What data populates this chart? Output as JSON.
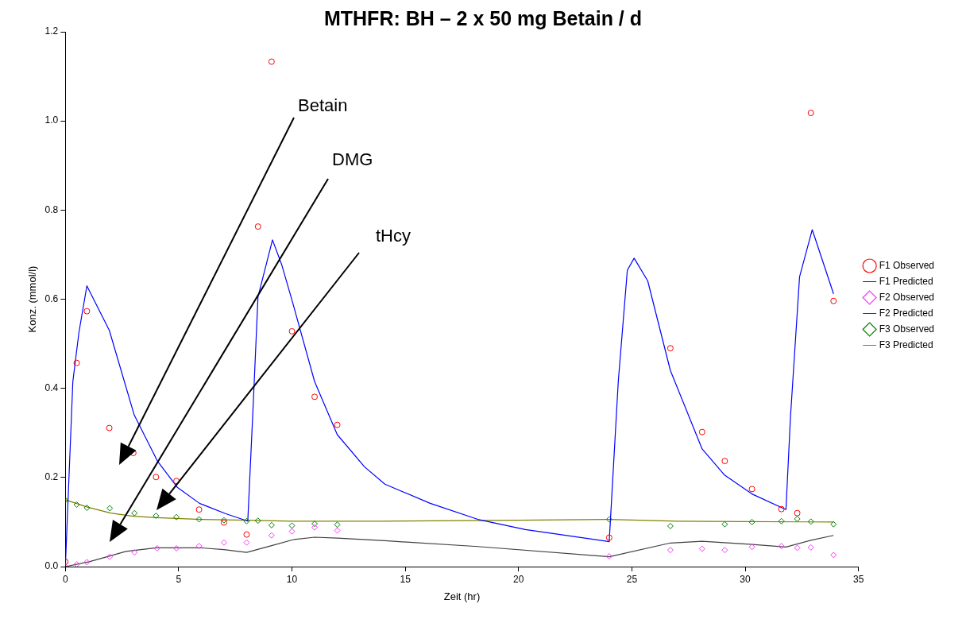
{
  "chart_data": {
    "type": "scatter",
    "title": "MTHFR: BH – 2 x 50 mg Betain / d",
    "xlabel": "Zeit (hr)",
    "ylabel": "Konz. (mmol/l)",
    "xlim": [
      0,
      35
    ],
    "xticks": [
      0,
      5,
      10,
      15,
      20,
      25,
      30,
      35
    ],
    "ylim": [
      0,
      1.2
    ],
    "yticks": [
      {
        "value": 0,
        "label": "0.0"
      },
      {
        "value": 0.2,
        "label": "0.2"
      },
      {
        "value": 0.4,
        "label": "0.4"
      },
      {
        "value": 0.6,
        "label": "0.6"
      },
      {
        "value": 0.8,
        "label": "0.8"
      },
      {
        "value": 1,
        "label": "1.0"
      },
      {
        "value": 1.2,
        "label": "1.2"
      }
    ],
    "grid": false,
    "legend": "right",
    "annotations": [
      "Betain",
      "DMG",
      "tHcy"
    ],
    "series": [
      {
        "name": "F1 Observed",
        "marker": "circle",
        "color": "#ff0000",
        "x": [
          0,
          0.5,
          0.95,
          1.94,
          3.0,
          4.0,
          4.9,
          5.9,
          7.0,
          8.0,
          8.5,
          9.1,
          10.0,
          11.0,
          12.0,
          24.0,
          26.7,
          28.1,
          29.1,
          30.3,
          31.6,
          32.3,
          32.9,
          33.9
        ],
        "values": [
          0.011,
          0.457,
          0.573,
          0.311,
          0.255,
          0.201,
          0.192,
          0.128,
          0.099,
          0.072,
          0.763,
          1.133,
          0.528,
          0.381,
          0.318,
          0.065,
          0.49,
          0.302,
          0.237,
          0.174,
          0.129,
          0.12,
          1.018,
          0.596
        ]
      },
      {
        "name": "F1 Predicted",
        "type": "line",
        "marker": "none",
        "color": "#0000ff",
        "x": [
          0,
          0.33,
          0.6,
          0.95,
          1.94,
          3.04,
          4.06,
          4.94,
          5.92,
          7.06,
          8.05,
          8.3,
          8.5,
          9.14,
          9.55,
          10.0,
          11.0,
          12.0,
          13.2,
          14.1,
          16.1,
          18.2,
          20.3,
          24.0,
          24.4,
          24.8,
          25.1,
          25.7,
          26.7,
          28.1,
          29.1,
          30.3,
          31.8,
          32.0,
          32.4,
          32.96,
          33.9
        ],
        "values": [
          0,
          0.415,
          0.526,
          0.63,
          0.53,
          0.34,
          0.237,
          0.178,
          0.142,
          0.119,
          0.102,
          0.375,
          0.605,
          0.733,
          0.677,
          0.598,
          0.415,
          0.296,
          0.224,
          0.185,
          0.142,
          0.106,
          0.083,
          0.056,
          0.415,
          0.665,
          0.692,
          0.641,
          0.44,
          0.264,
          0.205,
          0.163,
          0.128,
          0.336,
          0.65,
          0.756,
          0.612
        ]
      },
      {
        "name": "F2 Observed",
        "marker": "diamond",
        "color": "#ff33ff",
        "x": [
          0,
          0.5,
          0.95,
          1.96,
          3.05,
          4.05,
          4.9,
          5.9,
          7.0,
          8.0,
          9.1,
          10.0,
          11.0,
          12.0,
          24.0,
          26.7,
          28.1,
          29.1,
          30.3,
          31.6,
          32.3,
          32.9,
          33.9
        ],
        "values": [
          0,
          0.005,
          0.01,
          0.022,
          0.032,
          0.041,
          0.041,
          0.046,
          0.054,
          0.054,
          0.07,
          0.079,
          0.088,
          0.081,
          0.023,
          0.037,
          0.04,
          0.037,
          0.044,
          0.046,
          0.042,
          0.043,
          0.026
        ]
      },
      {
        "name": "F2 Predicted",
        "type": "line",
        "marker": "none",
        "color": "#404040",
        "x": [
          0,
          1.05,
          1.9,
          2.67,
          4.0,
          6.0,
          7.0,
          8.0,
          9.1,
          10.1,
          11.0,
          12.0,
          14.1,
          18.2,
          24.0,
          26.7,
          28.1,
          30.2,
          31.8,
          32.9,
          33.9
        ],
        "values": [
          0,
          0.011,
          0.023,
          0.034,
          0.042,
          0.042,
          0.038,
          0.032,
          0.047,
          0.061,
          0.066,
          0.064,
          0.058,
          0.045,
          0.022,
          0.053,
          0.057,
          0.05,
          0.044,
          0.059,
          0.07
        ]
      },
      {
        "name": "F3 Observed",
        "marker": "diamond",
        "color": "#008000",
        "x": [
          0,
          0.5,
          0.95,
          1.96,
          3.05,
          4.0,
          4.9,
          5.9,
          7.0,
          8.0,
          8.5,
          9.1,
          10.0,
          11.0,
          12.0,
          24.0,
          26.7,
          29.1,
          30.3,
          31.6,
          32.3,
          32.9,
          33.9
        ],
        "values": [
          0.149,
          0.139,
          0.132,
          0.131,
          0.12,
          0.114,
          0.111,
          0.106,
          0.104,
          0.102,
          0.103,
          0.093,
          0.092,
          0.096,
          0.094,
          0.106,
          0.091,
          0.095,
          0.1,
          0.102,
          0.107,
          0.101,
          0.095
        ]
      },
      {
        "name": "F3 Predicted",
        "type": "line",
        "marker": "none",
        "color": "#808000",
        "x": [
          0,
          1,
          2,
          3,
          4,
          6,
          8,
          10,
          14,
          20,
          24,
          27,
          30,
          33.9
        ],
        "values": [
          0.15,
          0.133,
          0.12,
          0.113,
          0.11,
          0.106,
          0.104,
          0.102,
          0.102,
          0.104,
          0.106,
          0.102,
          0.101,
          0.1
        ]
      }
    ]
  }
}
